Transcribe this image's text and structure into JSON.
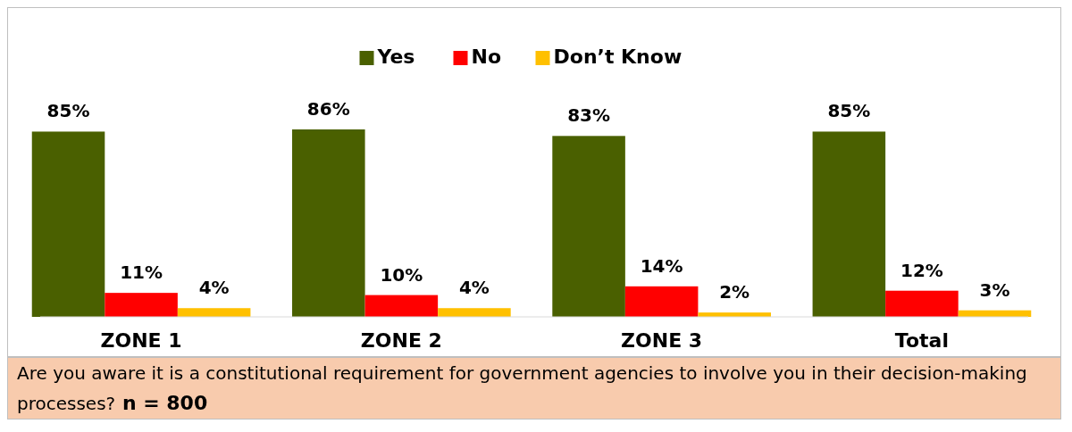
{
  "chart_data": {
    "type": "bar",
    "categories": [
      "ZONE 1",
      "ZONE 2",
      "ZONE 3",
      "Total"
    ],
    "series": [
      {
        "name": "Yes",
        "color": "#4a6000",
        "values": [
          85,
          86,
          83,
          85
        ],
        "value_labels": [
          "85%",
          "86%",
          "83%",
          "85%"
        ]
      },
      {
        "name": "No",
        "color": "#ff0000",
        "values": [
          11,
          10,
          14,
          12
        ],
        "value_labels": [
          "11%",
          "10%",
          "14%",
          "12%"
        ]
      },
      {
        "name": "Don’t Know",
        "color": "#ffc000",
        "values": [
          4,
          4,
          2,
          3
        ],
        "value_labels": [
          "4%",
          "4%",
          "2%",
          "3%"
        ]
      }
    ],
    "legend": "top",
    "annotations": [
      "Are you aware it is a constitutional requirement for government agencies to involve you in their decision-making processes?",
      "n = 800"
    ]
  }
}
